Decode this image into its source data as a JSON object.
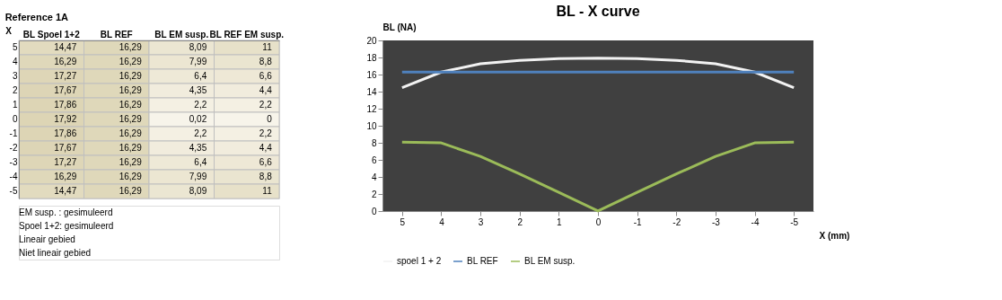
{
  "chart_data": [
    {
      "type": "heatmap",
      "title": "Reference 1A",
      "ylabel": "X",
      "categories": [
        "BL Spoel 1+2",
        "BL REF",
        "BL EM susp.",
        "BL REF EM susp."
      ],
      "y_categories": [
        "5",
        "4",
        "3",
        "2",
        "1",
        "0",
        "-1",
        "-2",
        "-3",
        "-4",
        "-5"
      ],
      "cells": [
        [
          14.47,
          16.29,
          8.09,
          11
        ],
        [
          16.29,
          16.29,
          7.99,
          8.8
        ],
        [
          17.27,
          16.29,
          6.4,
          6.6
        ],
        [
          17.67,
          16.29,
          4.35,
          4.4
        ],
        [
          17.86,
          16.29,
          2.2,
          2.2
        ],
        [
          17.92,
          16.29,
          0.02,
          0
        ],
        [
          17.86,
          16.29,
          2.2,
          2.2
        ],
        [
          17.67,
          16.29,
          4.35,
          4.4
        ],
        [
          17.27,
          16.29,
          6.4,
          6.6
        ],
        [
          16.29,
          16.29,
          7.99,
          8.8
        ],
        [
          14.47,
          16.29,
          8.09,
          11
        ]
      ],
      "cell_labels": [
        [
          "14,47",
          "16,29",
          "8,09",
          "11"
        ],
        [
          "16,29",
          "16,29",
          "7,99",
          "8,8"
        ],
        [
          "17,27",
          "16,29",
          "6,4",
          "6,6"
        ],
        [
          "17,67",
          "16,29",
          "4,35",
          "4,4"
        ],
        [
          "17,86",
          "16,29",
          "2,2",
          "2,2"
        ],
        [
          "17,92",
          "16,29",
          "0,02",
          "0"
        ],
        [
          "17,86",
          "16,29",
          "2,2",
          "2,2"
        ],
        [
          "17,67",
          "16,29",
          "4,35",
          "4,4"
        ],
        [
          "17,27",
          "16,29",
          "6,4",
          "6,6"
        ],
        [
          "16,29",
          "16,29",
          "7,99",
          "8,8"
        ],
        [
          "14,47",
          "16,29",
          "8,09",
          "11"
        ]
      ],
      "annotations": [
        "EM susp. : gesimuleerd",
        "Spoel 1+2: gesimuleerd",
        "Lineair gebied",
        "Niet lineair gebied"
      ]
    },
    {
      "type": "line",
      "title": "BL - X curve",
      "ylabel": "BL (NA)",
      "xlabel": "X (mm)",
      "categories": [
        "5",
        "4",
        "3",
        "2",
        "1",
        "0",
        "-1",
        "-2",
        "-3",
        "-4",
        "-5"
      ],
      "series": [
        {
          "name": "spoel 1 + 2",
          "color": "#f2f2f2",
          "values": [
            14.47,
            16.29,
            17.27,
            17.67,
            17.86,
            17.92,
            17.86,
            17.67,
            17.27,
            16.29,
            14.47
          ]
        },
        {
          "name": "BL REF",
          "color": "#4f81bd",
          "values": [
            16.29,
            16.29,
            16.29,
            16.29,
            16.29,
            16.29,
            16.29,
            16.29,
            16.29,
            16.29,
            16.29
          ]
        },
        {
          "name": "BL EM susp.",
          "color": "#9bbb59",
          "values": [
            8.09,
            7.99,
            6.4,
            4.35,
            2.2,
            0.02,
            2.2,
            4.35,
            6.4,
            7.99,
            8.09
          ]
        }
      ],
      "ylim": [
        0,
        20
      ],
      "yticks": [
        0,
        2,
        4,
        6,
        8,
        10,
        12,
        14,
        16,
        18,
        20
      ],
      "grid": false,
      "legend": "bottom"
    }
  ]
}
